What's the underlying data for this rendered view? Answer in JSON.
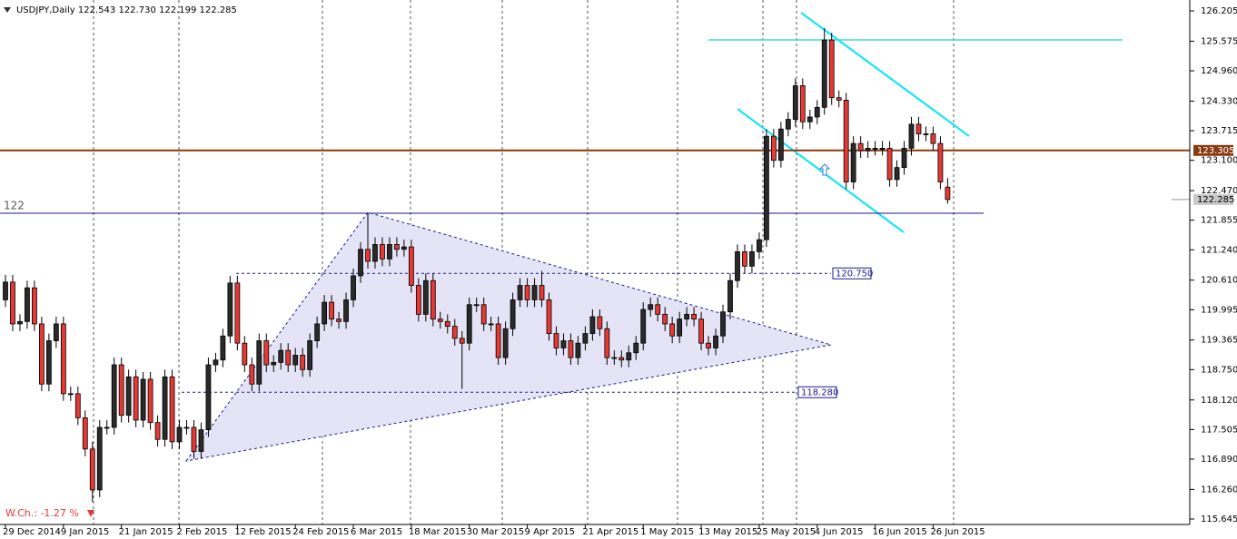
{
  "chart_data": {
    "type": "candlestick",
    "title": "USDJPY,Daily",
    "header_labels": {
      "open": "122.543",
      "high": "122.730",
      "low": "122.199",
      "close": "122.285"
    },
    "weekly_change": "W.Ch.: -1.27 %",
    "categories": [
      "29 Dec 2014",
      null,
      null,
      null,
      null,
      null,
      null,
      null,
      "9 Jan 2015",
      null,
      null,
      null,
      null,
      null,
      null,
      null,
      "21 Jan 2015",
      null,
      null,
      null,
      null,
      null,
      null,
      null,
      "2 Feb 2015",
      null,
      null,
      null,
      null,
      null,
      null,
      null,
      "12 Feb 2015",
      null,
      null,
      null,
      null,
      null,
      null,
      null,
      "24 Feb 2015",
      null,
      null,
      null,
      null,
      null,
      null,
      null,
      "6 Mar 2015",
      null,
      null,
      null,
      null,
      null,
      null,
      null,
      "18 Mar 2015",
      null,
      null,
      null,
      null,
      null,
      null,
      null,
      "30 Mar 2015",
      null,
      null,
      null,
      null,
      null,
      null,
      null,
      "9 Apr 2015",
      null,
      null,
      null,
      null,
      null,
      null,
      null,
      "21 Apr 2015",
      null,
      null,
      null,
      null,
      null,
      null,
      null,
      "1 May 2015",
      null,
      null,
      null,
      null,
      null,
      null,
      null,
      "13 May 2015",
      null,
      null,
      null,
      null,
      null,
      null,
      null,
      "25 May 2015",
      null,
      null,
      null,
      null,
      null,
      null,
      null,
      "4 Jun 2015",
      null,
      null,
      null,
      null,
      null,
      null,
      null,
      "16 Jun 2015",
      null,
      null,
      null,
      null,
      null,
      null,
      null,
      "26 Jun 2015",
      null,
      null
    ],
    "open": [
      120.2,
      120.57,
      119.7,
      119.75,
      120.45,
      119.7,
      118.45,
      119.35,
      119.7,
      118.25,
      118.25,
      117.75,
      117.1,
      116.25,
      117.55,
      117.55,
      118.85,
      117.8,
      118.6,
      117.7,
      118.55,
      117.65,
      117.3,
      118.6,
      117.25,
      117.55,
      117.55,
      117.05,
      117.5,
      118.85,
      118.95,
      119.45,
      120.55,
      119.3,
      118.85,
      118.45,
      119.35,
      118.85,
      118.9,
      119.15,
      118.85,
      119.05,
      118.75,
      119.35,
      119.7,
      120.15,
      119.8,
      119.75,
      120.2,
      120.7,
      121.25,
      121.0,
      121.35,
      121.05,
      121.35,
      121.25,
      121.3,
      120.5,
      119.9,
      120.6,
      119.8,
      119.75,
      119.65,
      119.4,
      119.3,
      120.1,
      120.1,
      119.7,
      119.7,
      119.0,
      119.6,
      120.2,
      120.5,
      120.2,
      120.5,
      120.2,
      119.5,
      119.2,
      119.35,
      119.0,
      119.3,
      119.5,
      119.85,
      119.6,
      119.0,
      119.0,
      118.95,
      119.1,
      119.3,
      120.0,
      120.1,
      119.9,
      119.7,
      119.45,
      119.8,
      119.9,
      119.8,
      119.3,
      119.2,
      119.45,
      119.95,
      120.6,
      121.2,
      120.9,
      121.2,
      121.45,
      123.6,
      123.1,
      123.75,
      123.95,
      124.65,
      123.9,
      124.0,
      124.2,
      125.6,
      124.4,
      124.35,
      122.65,
      123.45,
      123.3,
      123.35,
      123.35,
      123.35,
      122.7,
      122.95,
      123.35,
      123.85,
      123.65,
      123.65,
      123.45,
      122.543
    ],
    "high": [
      120.72,
      120.72,
      119.9,
      120.6,
      120.6,
      119.85,
      119.5,
      119.85,
      119.85,
      118.4,
      118.4,
      117.9,
      117.25,
      117.7,
      117.7,
      119.0,
      119.0,
      118.75,
      118.75,
      118.7,
      118.7,
      117.8,
      118.75,
      118.75,
      117.7,
      117.7,
      117.7,
      117.65,
      119.0,
      119.1,
      119.6,
      120.7,
      120.7,
      119.45,
      119.0,
      119.5,
      119.5,
      119.05,
      119.3,
      119.3,
      119.2,
      119.2,
      119.5,
      119.85,
      120.3,
      120.3,
      119.95,
      120.35,
      120.85,
      121.4,
      122.0,
      121.5,
      121.5,
      121.5,
      121.5,
      121.45,
      121.45,
      120.65,
      120.75,
      120.75,
      119.95,
      119.9,
      119.8,
      119.55,
      120.25,
      120.25,
      120.25,
      119.85,
      119.85,
      119.75,
      120.35,
      120.65,
      120.65,
      120.65,
      120.8,
      120.35,
      119.65,
      119.5,
      119.5,
      119.45,
      119.65,
      120.0,
      120.0,
      119.75,
      119.15,
      119.15,
      119.25,
      119.45,
      120.15,
      120.25,
      120.25,
      120.05,
      119.85,
      119.95,
      120.05,
      120.05,
      119.95,
      119.45,
      119.6,
      120.1,
      120.75,
      121.35,
      121.35,
      121.35,
      121.6,
      123.75,
      123.75,
      123.9,
      124.1,
      124.8,
      124.8,
      124.15,
      124.35,
      125.85,
      125.75,
      124.55,
      124.5,
      123.6,
      123.6,
      123.5,
      123.5,
      123.5,
      123.5,
      123.1,
      123.5,
      124.0,
      124.0,
      123.8,
      123.8,
      123.6,
      122.73
    ],
    "low": [
      120.05,
      119.55,
      119.55,
      119.6,
      119.55,
      118.3,
      118.3,
      119.2,
      118.1,
      118.1,
      117.6,
      116.95,
      116.0,
      116.1,
      117.4,
      117.4,
      117.65,
      117.65,
      117.55,
      117.55,
      117.5,
      117.15,
      117.15,
      117.1,
      117.1,
      117.4,
      116.9,
      116.9,
      117.35,
      118.7,
      118.8,
      119.3,
      119.15,
      118.7,
      118.3,
      118.3,
      118.7,
      118.7,
      118.75,
      118.7,
      118.7,
      118.6,
      118.6,
      119.2,
      119.55,
      119.65,
      119.6,
      119.6,
      120.05,
      120.55,
      120.85,
      120.85,
      120.9,
      120.9,
      121.1,
      121.1,
      120.35,
      119.75,
      119.75,
      119.65,
      119.6,
      119.5,
      119.25,
      118.35,
      119.15,
      119.95,
      119.55,
      119.55,
      118.85,
      118.85,
      119.45,
      120.05,
      120.05,
      120.05,
      120.05,
      119.35,
      119.05,
      119.05,
      118.85,
      118.85,
      119.15,
      119.35,
      119.45,
      118.85,
      118.85,
      118.8,
      118.8,
      118.95,
      119.15,
      119.85,
      119.75,
      119.55,
      119.3,
      119.3,
      119.65,
      119.65,
      119.15,
      119.05,
      119.05,
      119.3,
      119.8,
      120.45,
      120.75,
      120.75,
      121.05,
      121.3,
      122.95,
      122.95,
      123.6,
      123.8,
      123.75,
      123.75,
      123.85,
      124.05,
      124.25,
      124.2,
      122.5,
      122.5,
      123.15,
      123.15,
      123.2,
      123.2,
      122.55,
      122.55,
      122.8,
      123.2,
      123.5,
      123.5,
      123.3,
      122.5,
      122.199
    ],
    "close": [
      120.57,
      119.7,
      119.75,
      120.45,
      119.7,
      118.45,
      119.35,
      119.7,
      118.25,
      118.25,
      117.75,
      117.1,
      116.25,
      117.55,
      117.55,
      118.85,
      117.8,
      118.6,
      117.7,
      118.55,
      117.65,
      117.3,
      118.6,
      117.25,
      117.55,
      117.55,
      117.05,
      117.5,
      118.85,
      118.95,
      119.45,
      120.55,
      119.3,
      118.85,
      118.45,
      119.35,
      118.85,
      118.9,
      119.15,
      118.85,
      119.05,
      118.75,
      119.35,
      119.7,
      120.15,
      119.8,
      119.75,
      120.2,
      120.7,
      121.25,
      121.0,
      121.35,
      121.05,
      121.35,
      121.25,
      121.3,
      120.5,
      119.9,
      120.6,
      119.8,
      119.75,
      119.65,
      119.4,
      119.3,
      120.1,
      120.1,
      119.7,
      119.7,
      119.0,
      119.6,
      120.2,
      120.5,
      120.2,
      120.5,
      120.2,
      119.5,
      119.2,
      119.35,
      119.0,
      119.3,
      119.5,
      119.85,
      119.6,
      119.0,
      119.0,
      118.95,
      119.1,
      119.3,
      120.0,
      120.1,
      119.9,
      119.7,
      119.45,
      119.8,
      119.9,
      119.8,
      119.3,
      119.2,
      119.45,
      119.95,
      120.6,
      121.2,
      120.9,
      121.2,
      121.45,
      123.6,
      123.1,
      123.75,
      123.95,
      124.65,
      123.9,
      124.0,
      124.2,
      125.6,
      124.4,
      124.35,
      122.65,
      123.45,
      123.3,
      123.35,
      123.35,
      123.35,
      122.7,
      122.95,
      123.35,
      123.85,
      123.65,
      123.65,
      123.45,
      122.65,
      122.285
    ],
    "up_color": "#2a2a2a",
    "down_color": "#e53935",
    "ylim": [
      115.645,
      126.205
    ],
    "yticks": [
      126.205,
      125.575,
      {
        "value": 124.96,
        "label": "124.960"
      },
      {
        "value": 124.33,
        "label": "124.330"
      },
      123.715,
      {
        "value": 123.1,
        "label": "123.100"
      },
      {
        "value": 122.47,
        "label": "122.470"
      },
      121.855,
      {
        "value": 121.24,
        "label": "121.240"
      },
      {
        "value": 120.61,
        "label": "120.610"
      },
      119.995,
      119.365,
      {
        "value": 118.75,
        "label": "118.750"
      },
      {
        "value": 118.12,
        "label": "118.120"
      },
      117.505,
      {
        "value": 116.89,
        "label": "116.890"
      },
      {
        "value": 116.26,
        "label": "116.260"
      },
      115.645
    ],
    "levels": [
      {
        "value": 123.305,
        "color": "#8b3a0f"
      },
      {
        "value": 122,
        "color": "#1a1a8c"
      },
      {
        "value": 120.75,
        "label": "120.750",
        "color": "#1a1a8c"
      },
      {
        "value": 118.28,
        "label": "118.280",
        "color": "#1a1a8c"
      }
    ]
  }
}
